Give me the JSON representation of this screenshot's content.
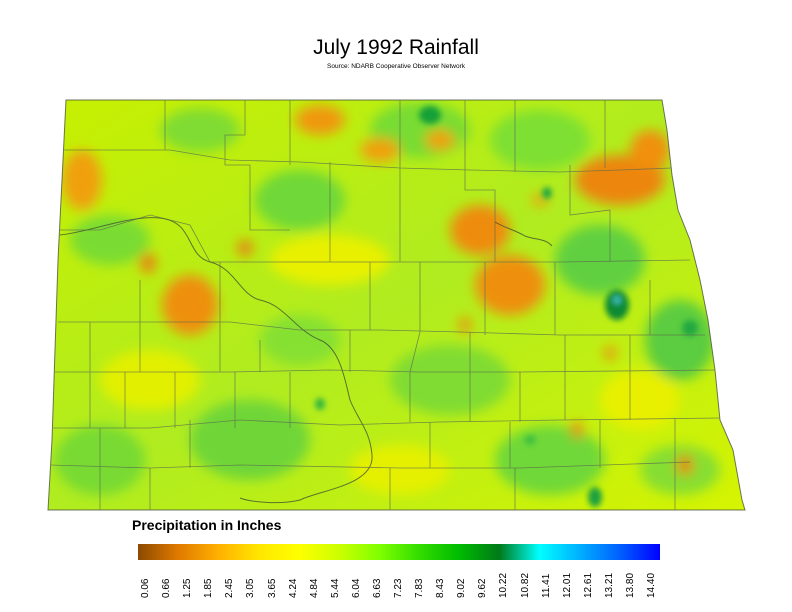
{
  "title": "July 1992 Rainfall",
  "subtitle": "Source: NDARB Cooperative Observer Network",
  "legend": {
    "title": "Precipitation in Inches",
    "ticks": [
      "0.06",
      "0.66",
      "1.25",
      "1.85",
      "2.45",
      "3.05",
      "3.65",
      "4.24",
      "4.84",
      "5.44",
      "6.04",
      "6.63",
      "7.23",
      "7.83",
      "8.43",
      "9.02",
      "9.62",
      "10.22",
      "10.82",
      "11.41",
      "12.01",
      "12.61",
      "13.21",
      "13.80",
      "14.40"
    ],
    "colors": [
      "#8b4a00",
      "#e07a00",
      "#ffb000",
      "#ffe600",
      "#ffff00",
      "#ccff00",
      "#80ff00",
      "#33dd00",
      "#00bb00",
      "#007a1a",
      "#00ffff",
      "#00b0ff",
      "#0060ff",
      "#0000ff"
    ]
  },
  "map": {
    "base_color": "#b8f020",
    "dry_color": "#e88a10",
    "wet_color": "#1a9a30"
  }
}
